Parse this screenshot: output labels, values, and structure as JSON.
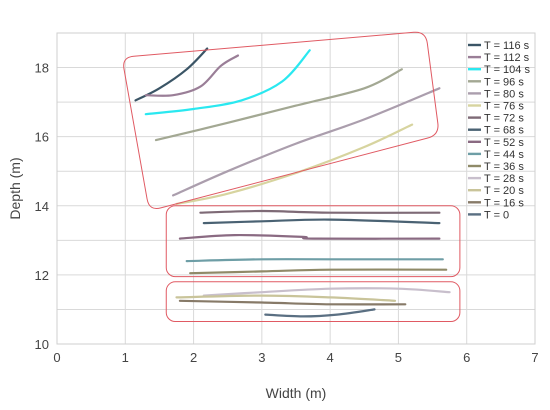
{
  "chart_data": {
    "type": "line",
    "xlabel": "Width (m)",
    "ylabel": "Depth (m)",
    "xlim": [
      0,
      7
    ],
    "ylim": [
      10,
      19
    ],
    "x_ticks": [
      "0",
      "1",
      "2",
      "3",
      "4",
      "5",
      "6",
      "7"
    ],
    "y_ticks": [
      "10",
      "12",
      "14",
      "16",
      "18"
    ],
    "grid": true,
    "legend_position": "top-right",
    "annotation_box_color": "#e05a63",
    "series": [
      {
        "name": "T = 116 s",
        "color": "#3b5566",
        "points": [
          [
            1.15,
            17.05
          ],
          [
            1.5,
            17.4
          ],
          [
            1.9,
            17.95
          ],
          [
            2.2,
            18.55
          ]
        ]
      },
      {
        "name": "T = 112 s",
        "color": "#9a7e97",
        "points": [
          [
            1.3,
            17.2
          ],
          [
            1.7,
            17.2
          ],
          [
            2.1,
            17.45
          ],
          [
            2.4,
            18.05
          ],
          [
            2.65,
            18.35
          ]
        ]
      },
      {
        "name": "T = 104 s",
        "color": "#2ae8f0",
        "points": [
          [
            1.3,
            16.65
          ],
          [
            2.0,
            16.8
          ],
          [
            2.7,
            17.05
          ],
          [
            3.3,
            17.6
          ],
          [
            3.7,
            18.5
          ]
        ]
      },
      {
        "name": "T = 96 s",
        "color": "#a3a893",
        "points": [
          [
            1.45,
            15.9
          ],
          [
            2.5,
            16.4
          ],
          [
            3.5,
            16.9
          ],
          [
            4.5,
            17.4
          ],
          [
            5.05,
            17.95
          ]
        ]
      },
      {
        "name": "T = 80 s",
        "color": "#ab9ead",
        "points": [
          [
            1.7,
            14.3
          ],
          [
            2.5,
            15.0
          ],
          [
            3.5,
            15.8
          ],
          [
            4.5,
            16.5
          ],
          [
            5.6,
            17.4
          ]
        ]
      },
      {
        "name": "T = 76 s",
        "color": "#d7d49f",
        "points": [
          [
            1.75,
            14.05
          ],
          [
            2.5,
            14.35
          ],
          [
            3.5,
            14.95
          ],
          [
            4.5,
            15.7
          ],
          [
            5.2,
            16.35
          ]
        ]
      },
      {
        "name": "T = 72 s",
        "color": "#7e6a76",
        "points": [
          [
            2.1,
            13.8
          ],
          [
            3.0,
            13.85
          ],
          [
            4.0,
            13.8
          ],
          [
            5.6,
            13.8
          ]
        ]
      },
      {
        "name": "T = 68 s",
        "color": "#4a6273",
        "points": [
          [
            2.15,
            13.5
          ],
          [
            3.0,
            13.55
          ],
          [
            4.0,
            13.6
          ],
          [
            5.6,
            13.5
          ]
        ]
      },
      {
        "name": "T = 52 s",
        "color": "#8a6a82",
        "points": [
          [
            1.8,
            13.05
          ],
          [
            2.6,
            13.15
          ],
          [
            3.6,
            13.1
          ],
          [
            3.75,
            13.05
          ],
          [
            5.6,
            13.05
          ]
        ]
      },
      {
        "name": "T = 44 s",
        "color": "#6e9ea6",
        "points": [
          [
            1.9,
            12.4
          ],
          [
            3.0,
            12.45
          ],
          [
            4.0,
            12.45
          ],
          [
            5.65,
            12.45
          ]
        ]
      },
      {
        "name": "T = 36 s",
        "color": "#8f8a68",
        "points": [
          [
            1.95,
            12.05
          ],
          [
            3.0,
            12.1
          ],
          [
            4.0,
            12.15
          ],
          [
            5.7,
            12.15
          ]
        ]
      },
      {
        "name": "T = 28 s",
        "color": "#c8bfcc",
        "points": [
          [
            2.15,
            11.4
          ],
          [
            3.0,
            11.5
          ],
          [
            4.0,
            11.6
          ],
          [
            5.0,
            11.6
          ],
          [
            5.75,
            11.5
          ]
        ]
      },
      {
        "name": "T = 20 s",
        "color": "#c9c49a",
        "points": [
          [
            1.75,
            11.35
          ],
          [
            3.0,
            11.4
          ],
          [
            4.0,
            11.35
          ],
          [
            4.95,
            11.25
          ]
        ]
      },
      {
        "name": "T = 16 s",
        "color": "#877a68",
        "points": [
          [
            1.8,
            11.25
          ],
          [
            3.0,
            11.2
          ],
          [
            4.0,
            11.15
          ],
          [
            5.1,
            11.15
          ]
        ]
      },
      {
        "name": "T = 0",
        "color": "#5a6f82",
        "points": [
          [
            3.05,
            10.85
          ],
          [
            3.6,
            10.8
          ],
          [
            4.1,
            10.85
          ],
          [
            4.65,
            11.0
          ]
        ]
      }
    ],
    "annotation_boxes": [
      {
        "shape": "rotated-rounded-rect",
        "corners": [
          [
            0.95,
            18.3
          ],
          [
            5.4,
            19.05
          ],
          [
            5.6,
            16.05
          ],
          [
            1.35,
            13.85
          ]
        ]
      },
      {
        "shape": "rounded-rect",
        "x_range": [
          1.6,
          5.9
        ],
        "y_range": [
          11.95,
          14.0
        ]
      },
      {
        "shape": "rounded-rect",
        "x_range": [
          1.6,
          5.9
        ],
        "y_range": [
          10.65,
          11.8
        ]
      }
    ]
  }
}
